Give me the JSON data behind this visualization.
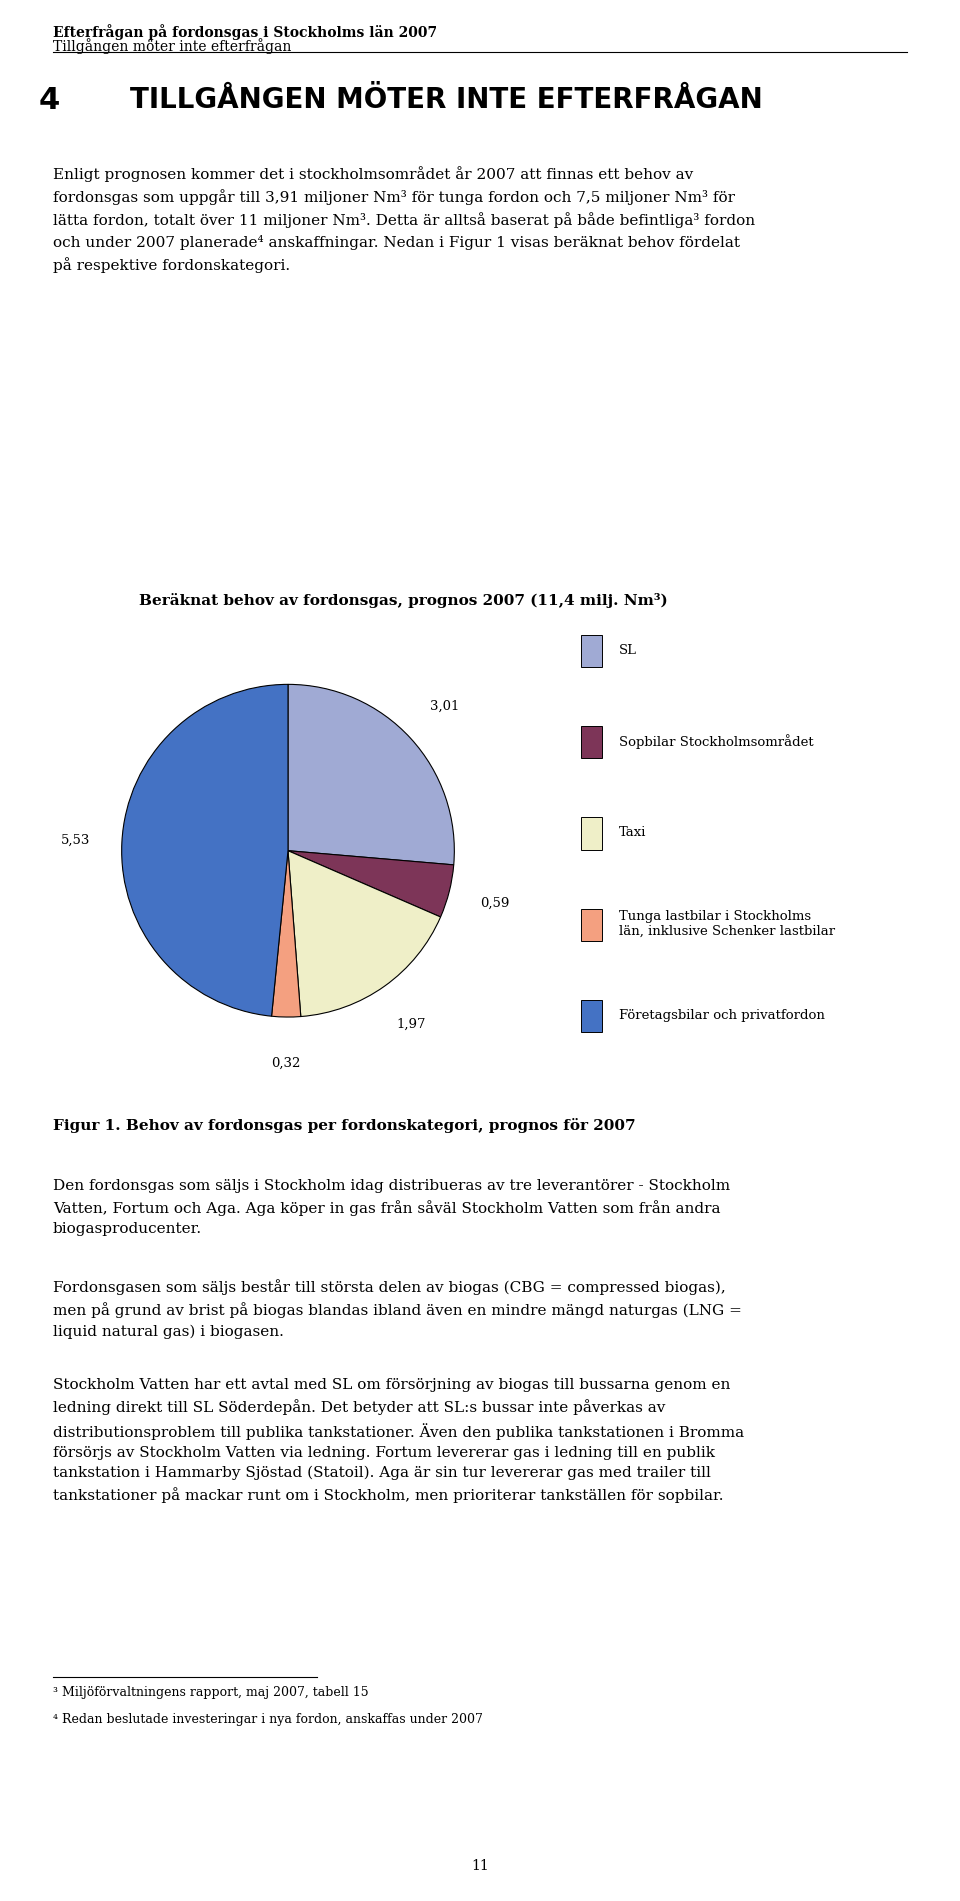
{
  "header_bold": "Efterfrågan på fordonsgas i Stockholms län 2007",
  "header_sub": "Tillgången möter inte efterfrågan",
  "section_number": "4",
  "section_title": "TILLGÅNGEN MÖTER INTE EFTERFRÅGAN",
  "chart_title": "Beräknat behov av fordonsgas, prognos 2007 (11,4 milj. Nm³)",
  "pie_values": [
    3.01,
    0.59,
    1.97,
    0.32,
    5.53
  ],
  "pie_labels": [
    "3,01",
    "0,59",
    "1,97",
    "0,32",
    "5,53"
  ],
  "pie_colors": [
    "#a0aad4",
    "#7d3558",
    "#efefc8",
    "#f4a080",
    "#4472c4"
  ],
  "legend_labels": [
    "SL",
    "Sopbilar Stockholmsområdet",
    "Taxi",
    "Tunga lastbilar i Stockholms\nlän, inklusive Schenker lastbilar",
    "Företagsbilar och privatfordon"
  ],
  "legend_colors": [
    "#a0aad4",
    "#7d3558",
    "#efefc8",
    "#f4a080",
    "#4472c4"
  ],
  "figure_caption": "Figur 1. Behov av fordonsgas per fordonskategori, prognos för 2007",
  "footnote_3": "³ Miljöförvaltningens rapport, maj 2007, tabell 15",
  "footnote_4": "⁴ Redan beslutade investeringar i nya fordon, anskaffas under 2007",
  "page_number": "11"
}
